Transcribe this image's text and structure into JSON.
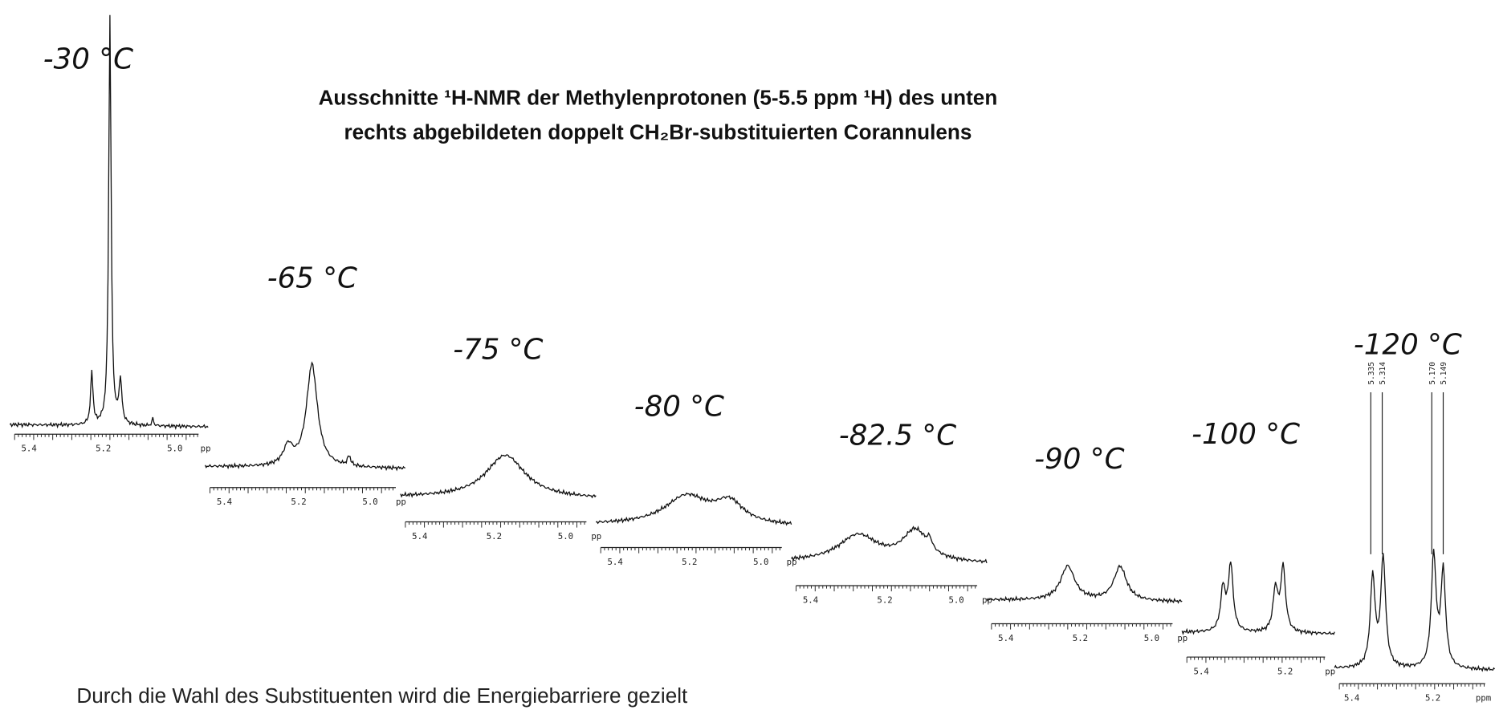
{
  "title_line1": "Ausschnitte ¹H-NMR der Methylenprotonen (5-5.5 ppm ¹H) des unten",
  "title_line2": "rechts abgebildeten doppelt CH₂Br-substituierten Corannulens",
  "footer_text": "Durch die Wahl des Substituenten wird die Energiebarriere gezielt",
  "spectra": [
    {
      "temperature": "-30 °C",
      "axis_labels": [
        "5.4",
        "5.2",
        "5.0",
        "pp"
      ]
    },
    {
      "temperature": "-65 °C",
      "axis_labels": [
        "5.4",
        "5.2",
        "5.0",
        "pp"
      ]
    },
    {
      "temperature": "-75 °C",
      "axis_labels": [
        "5.4",
        "5.2",
        "5.0",
        "pp"
      ]
    },
    {
      "temperature": "-80 °C",
      "axis_labels": [
        "5.4",
        "5.2",
        "5.0",
        "pp"
      ]
    },
    {
      "temperature": "-82.5 °C",
      "axis_labels": [
        "5.4",
        "5.2",
        "5.0",
        "pp"
      ]
    },
    {
      "temperature": "-90 °C",
      "axis_labels": [
        "5.4",
        "5.2",
        "5.0",
        "pp"
      ]
    },
    {
      "temperature": "-100 °C",
      "axis_labels": [
        "5.4",
        "5.2",
        "pp"
      ]
    },
    {
      "temperature": "-120 °C",
      "axis_labels": [
        "5.4",
        "5.2",
        "ppm"
      ]
    }
  ],
  "peak_labels": [
    "5.335",
    "5.314",
    "5.170",
    "5.149"
  ]
}
